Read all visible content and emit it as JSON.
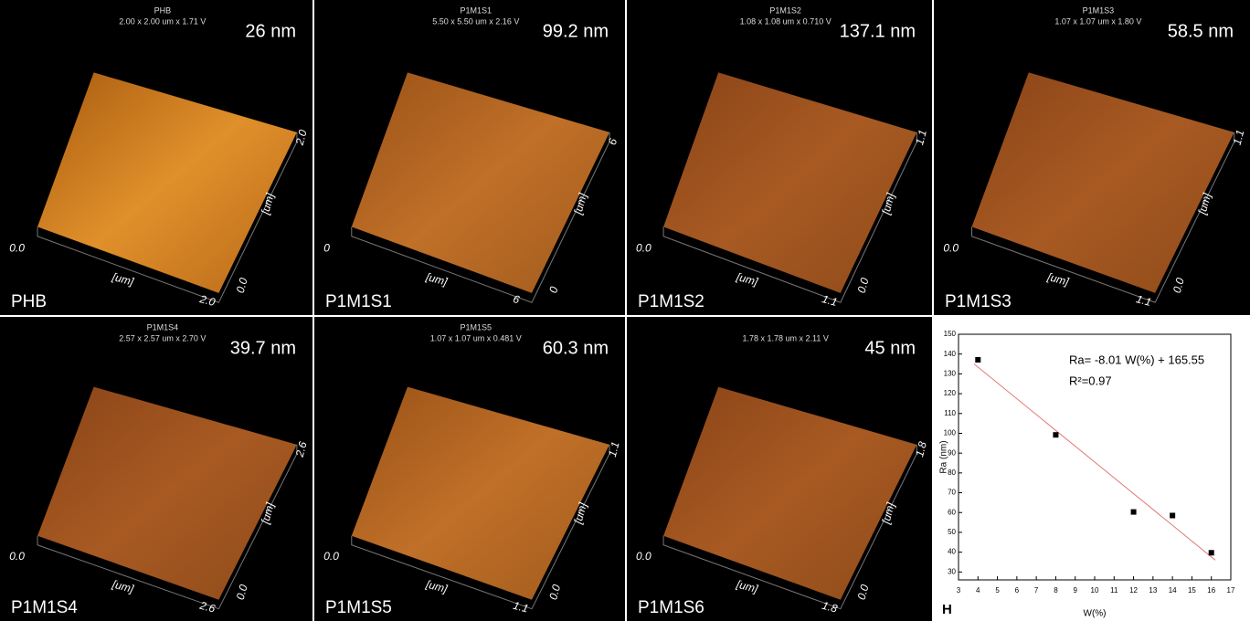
{
  "panels": [
    {
      "title": "PHB",
      "scan": "2.00 x 2.00 um x 1.71 V",
      "roughness": "26 nm",
      "label": "PHB",
      "axis_labels": [
        "0.0",
        "[um]",
        "2.0",
        "0.0",
        "[um]",
        "2.0"
      ]
    },
    {
      "title": "P1M1S1",
      "scan": "5.50 x 5.50 um x 2.16 V",
      "roughness": "99.2 nm",
      "label": "P1M1S1",
      "axis_labels": [
        "0",
        "[um]",
        "6",
        "0",
        "[um]",
        "6"
      ]
    },
    {
      "title": "P1M1S2",
      "scan": "1.08 x 1.08 um x 0.710 V",
      "roughness": "137.1 nm",
      "label": "P1M1S2",
      "axis_labels": [
        "0.0",
        "[um]",
        "1.1",
        "0.0",
        "[um]",
        "1.1"
      ]
    },
    {
      "title": "P1M1S3",
      "scan": "1.07 x 1.07 um x 1.80 V",
      "roughness": "58.5 nm",
      "label": "P1M1S3",
      "axis_labels": [
        "0.0",
        "[um]",
        "1.1",
        "0.0",
        "[um]",
        "1.1"
      ]
    },
    {
      "title": "P1M1S4",
      "scan": "2.57 x 2.57 um x 2.70 V",
      "roughness": "39.7 nm",
      "label": "P1M1S4",
      "axis_labels": [
        "0.0",
        "[um]",
        "2.6",
        "0.0",
        "[um]",
        "2.6"
      ]
    },
    {
      "title": "P1M1S5",
      "scan": "1.07 x 1.07 um x 0.481 V",
      "roughness": "60.3 nm",
      "label": "P1M1S5",
      "axis_labels": [
        "0.0",
        "[um]",
        "1.1",
        "0.0",
        "[um]",
        "1.1"
      ]
    },
    {
      "scan": "1.78 x 1.78 um x 2.11 V",
      "roughness": "45 nm",
      "label": "P1M1S6",
      "axis_labels": [
        "0.0",
        "[um]",
        "1.8",
        "0.0",
        "[um]",
        "1.8"
      ]
    }
  ],
  "chart_data": {
    "type": "scatter",
    "panel_label": "H",
    "x_label": "W(%)",
    "y_label": "Ra (nm)",
    "equation": "Ra= -8.01 W(%) + 165.55",
    "r_squared": "R²=0.97",
    "x": [
      4,
      8,
      12,
      14,
      16
    ],
    "values": [
      137.1,
      99.2,
      60.3,
      58.5,
      39.7
    ],
    "color": "#000000",
    "fit_line": {
      "x": [
        3.8,
        16.2
      ],
      "values": [
        135,
        36
      ],
      "color": "#e07a7a"
    },
    "xlim": [
      3,
      17
    ],
    "xticks": [
      3,
      4,
      5,
      6,
      7,
      8,
      9,
      10,
      11,
      12,
      13,
      14,
      15,
      16,
      17
    ],
    "ylim": [
      26,
      150
    ],
    "yticks": [
      30,
      40,
      50,
      60,
      70,
      80,
      90,
      100,
      110,
      120,
      130,
      140,
      150
    ]
  }
}
